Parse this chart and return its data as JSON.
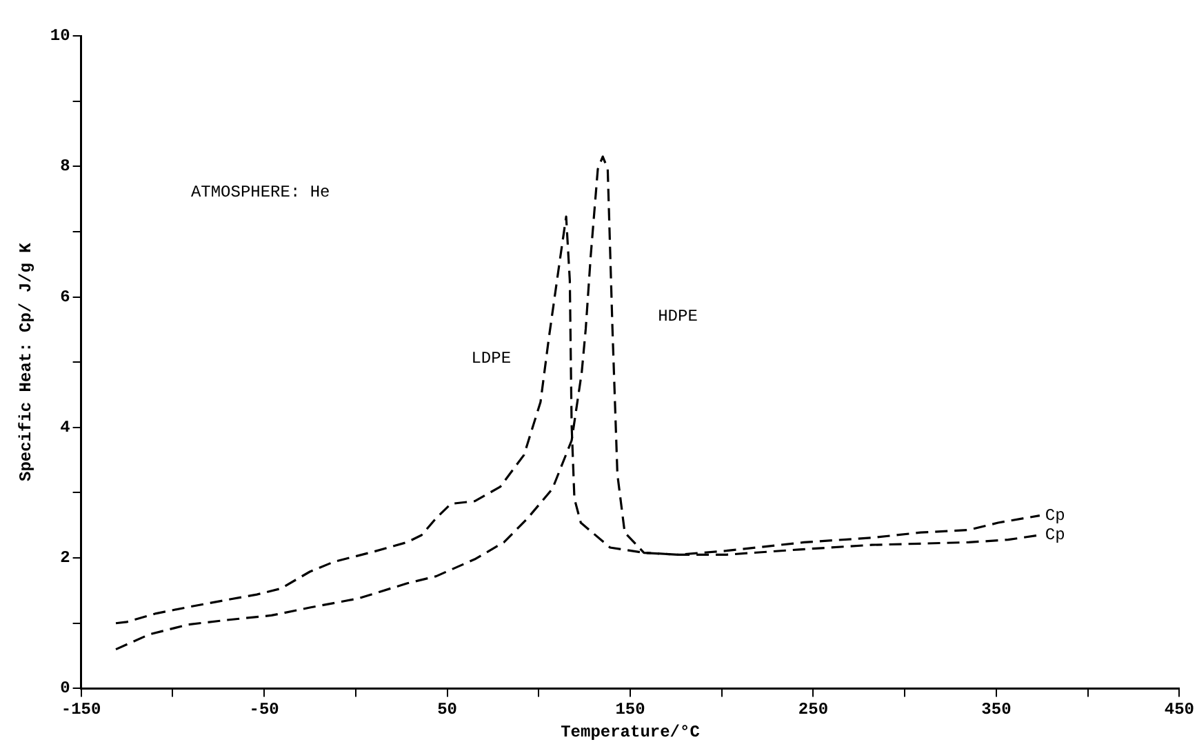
{
  "chart_data": {
    "type": "line",
    "xlabel": "Temperature/°C",
    "ylabel": "Specific Heat: Cp/ J/g K",
    "series": [
      {
        "name": "LDPE",
        "color": "#000000",
        "x": [
          -131,
          -125,
          -109,
          -91,
          -70,
          -54,
          -41,
          -25,
          -12,
          9,
          28,
          36,
          44,
          52,
          65,
          79,
          92,
          101,
          105.5,
          111.5,
          115,
          117,
          118,
          119.5,
          123,
          139,
          157.5,
          176,
          202.6,
          245,
          282,
          308.7,
          335,
          351,
          373.7
        ],
        "values": [
          1.0,
          1.02,
          1.15,
          1.25,
          1.36,
          1.44,
          1.53,
          1.79,
          1.94,
          2.09,
          2.24,
          2.35,
          2.61,
          2.83,
          2.87,
          3.09,
          3.58,
          4.39,
          5.36,
          6.55,
          7.23,
          6.25,
          4.03,
          2.91,
          2.54,
          2.16,
          2.08,
          2.05,
          2.11,
          2.24,
          2.31,
          2.39,
          2.43,
          2.54,
          2.65
        ]
      },
      {
        "name": "HDPE",
        "color": "#000000",
        "x": [
          -131,
          -112.6,
          -91.4,
          -70,
          -46,
          -25,
          1.5,
          28,
          44,
          65,
          81,
          94,
          107.5,
          118,
          123.5,
          125.7,
          128.4,
          132.3,
          135,
          137.7,
          140.3,
          143,
          147,
          157.5,
          176,
          202.6,
          242.5,
          282,
          335,
          356.5,
          373.7
        ],
        "values": [
          0.6,
          0.83,
          0.98,
          1.05,
          1.12,
          1.24,
          1.38,
          1.61,
          1.72,
          1.98,
          2.24,
          2.61,
          3.06,
          3.8,
          4.84,
          5.51,
          6.62,
          7.96,
          8.15,
          7.96,
          5.51,
          3.28,
          2.39,
          2.08,
          2.05,
          2.05,
          2.13,
          2.2,
          2.24,
          2.28,
          2.35
        ]
      }
    ],
    "xlim": [
      -150,
      450
    ],
    "xticks": [
      -150,
      {
        "value": -100,
        "label": null
      },
      -50,
      {
        "value": 0,
        "label": null
      },
      50,
      {
        "value": 100,
        "label": null
      },
      150,
      {
        "value": 200,
        "label": null
      },
      250,
      {
        "value": 300,
        "label": null
      },
      350,
      {
        "value": 400,
        "label": null
      },
      450
    ],
    "ylim": [
      0,
      10
    ],
    "yticks": [
      0,
      {
        "value": 1,
        "label": null
      },
      2,
      {
        "value": 3,
        "label": null
      },
      4,
      {
        "value": 5,
        "label": null
      },
      6,
      {
        "value": 7,
        "label": null
      },
      8,
      {
        "value": 9,
        "label": null
      },
      10
    ],
    "annotations": [
      "ATMOSPHERE: He",
      "Cp",
      "Cp"
    ],
    "grid": false,
    "legend": false,
    "marker": "none",
    "line_style": "dashed"
  }
}
